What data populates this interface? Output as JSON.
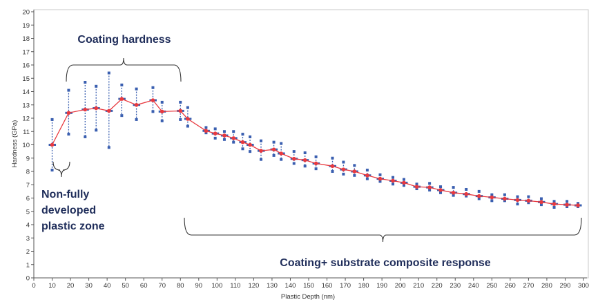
{
  "chart_data": {
    "type": "scatter",
    "xlabel": "Plastic Depth (nm)",
    "ylabel": "Hardness (GPa)",
    "xlim": [
      0,
      300
    ],
    "ylim": [
      0,
      20
    ],
    "xticks": [
      0,
      10,
      20,
      30,
      40,
      50,
      60,
      70,
      80,
      90,
      100,
      110,
      120,
      130,
      140,
      150,
      160,
      170,
      180,
      190,
      200,
      210,
      220,
      230,
      240,
      250,
      260,
      270,
      280,
      290,
      300
    ],
    "yticks": [
      0,
      1,
      2,
      3,
      4,
      5,
      6,
      7,
      8,
      9,
      10,
      11,
      12,
      13,
      14,
      15,
      16,
      17,
      18,
      19,
      20
    ],
    "grid": false,
    "colors": {
      "mean_line": "#e8393f",
      "mean_marker": "#e8393f",
      "error_bar": "#3a5fb0",
      "scatter": "#3a5fb0",
      "annotation_text": "#1f2d5a"
    },
    "series": [
      {
        "x": [
          10,
          19,
          28,
          34,
          41,
          48,
          56,
          65,
          70,
          80,
          84,
          94,
          99,
          104,
          109,
          114,
          118,
          124,
          131,
          135,
          142,
          148,
          154,
          163,
          169,
          175,
          182,
          189,
          196,
          202,
          209,
          216,
          222,
          229,
          236,
          243,
          250,
          257,
          264,
          270,
          277,
          284,
          291,
          297
        ],
        "y": [
          10.0,
          12.4,
          12.65,
          12.75,
          12.55,
          13.45,
          13.0,
          13.35,
          12.5,
          12.55,
          11.95,
          11.05,
          10.85,
          10.7,
          10.5,
          10.2,
          10.0,
          9.55,
          9.65,
          9.35,
          8.95,
          8.85,
          8.6,
          8.4,
          8.15,
          8.0,
          7.7,
          7.45,
          7.3,
          7.15,
          6.85,
          6.8,
          6.6,
          6.4,
          6.3,
          6.15,
          6.05,
          5.95,
          5.85,
          5.8,
          5.7,
          5.55,
          5.5,
          5.45
        ],
        "err_high": [
          11.9,
          14.1,
          14.7,
          14.4,
          15.4,
          14.5,
          14.2,
          14.3,
          13.2,
          13.2,
          12.8,
          11.3,
          11.2,
          11.0,
          11.0,
          10.8,
          10.6,
          10.3,
          10.2,
          10.1,
          9.5,
          9.4,
          9.1,
          9.0,
          8.7,
          8.45,
          8.1,
          7.75,
          7.55,
          7.4,
          7.05,
          7.1,
          6.85,
          6.8,
          6.65,
          6.5,
          6.25,
          6.25,
          6.1,
          6.1,
          5.95,
          5.75,
          5.75,
          5.6
        ],
        "err_low": [
          8.1,
          10.8,
          10.6,
          11.1,
          9.8,
          12.2,
          11.9,
          12.5,
          11.8,
          11.9,
          11.4,
          10.9,
          10.5,
          10.4,
          10.2,
          9.7,
          9.5,
          8.9,
          9.2,
          8.9,
          8.6,
          8.4,
          8.2,
          8.0,
          7.8,
          7.7,
          7.45,
          7.25,
          7.05,
          6.95,
          6.7,
          6.6,
          6.4,
          6.2,
          6.15,
          5.95,
          5.8,
          5.8,
          5.55,
          5.65,
          5.5,
          5.3,
          5.35,
          5.35
        ]
      }
    ],
    "annotations": {
      "coating": "Coating hardness",
      "nonfully": [
        "Non-fully",
        "developed",
        "plastic zone"
      ],
      "composite": "Coating+ substrate composite response"
    }
  }
}
